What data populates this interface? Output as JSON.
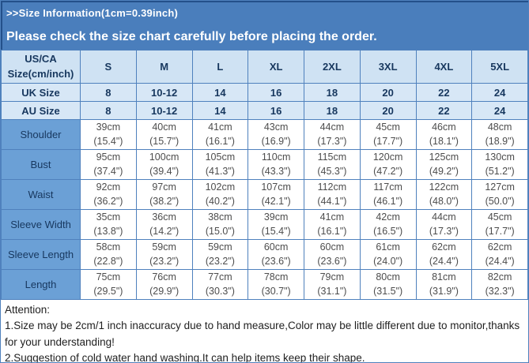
{
  "banner": {
    "title": ">>Size Information(1cm=0.39inch)",
    "subtitle": "Please check the size chart carefully before placing the order."
  },
  "table": {
    "corner_header_lines": [
      "US/CA",
      "Size(cm/inch)"
    ],
    "size_headers": [
      "S",
      "M",
      "L",
      "XL",
      "2XL",
      "3XL",
      "4XL",
      "5XL"
    ],
    "size_rows": [
      {
        "label": "UK Size",
        "values": [
          "8",
          "10-12",
          "14",
          "16",
          "18",
          "20",
          "22",
          "24"
        ]
      },
      {
        "label": "AU Size",
        "values": [
          "8",
          "10-12",
          "14",
          "16",
          "18",
          "20",
          "22",
          "24"
        ]
      }
    ],
    "measure_rows": [
      {
        "label": "Shoulder",
        "cm": [
          "39cm",
          "40cm",
          "41cm",
          "43cm",
          "44cm",
          "45cm",
          "46cm",
          "48cm"
        ],
        "inch": [
          "(15.4\")",
          "(15.7\")",
          "(16.1\")",
          "(16.9\")",
          "(17.3\")",
          "(17.7\")",
          "(18.1\")",
          "(18.9\")"
        ]
      },
      {
        "label": "Bust",
        "cm": [
          "95cm",
          "100cm",
          "105cm",
          "110cm",
          "115cm",
          "120cm",
          "125cm",
          "130cm"
        ],
        "inch": [
          "(37.4\")",
          "(39.4\")",
          "(41.3\")",
          "(43.3\")",
          "(45.3\")",
          "(47.2\")",
          "(49.2\")",
          "(51.2\")"
        ]
      },
      {
        "label": "Waist",
        "cm": [
          "92cm",
          "97cm",
          "102cm",
          "107cm",
          "112cm",
          "117cm",
          "122cm",
          "127cm"
        ],
        "inch": [
          "(36.2\")",
          "(38.2\")",
          "(40.2\")",
          "(42.1\")",
          "(44.1\")",
          "(46.1\")",
          "(48.0\")",
          "(50.0\")"
        ]
      },
      {
        "label": "Sleeve Width",
        "cm": [
          "35cm",
          "36cm",
          "38cm",
          "39cm",
          "41cm",
          "42cm",
          "44cm",
          "45cm"
        ],
        "inch": [
          "(13.8\")",
          "(14.2\")",
          "(15.0\")",
          "(15.4\")",
          "(16.1\")",
          "(16.5\")",
          "(17.3\")",
          "(17.7\")"
        ]
      },
      {
        "label": "Sleeve Length",
        "cm": [
          "58cm",
          "59cm",
          "59cm",
          "60cm",
          "60cm",
          "61cm",
          "62cm",
          "62cm"
        ],
        "inch": [
          "(22.8\")",
          "(23.2\")",
          "(23.2\")",
          "(23.6\")",
          "(23.6\")",
          "(24.0\")",
          "(24.4\")",
          "(24.4\")"
        ]
      },
      {
        "label": "Length",
        "cm": [
          "75cm",
          "76cm",
          "77cm",
          "78cm",
          "79cm",
          "80cm",
          "81cm",
          "82cm"
        ],
        "inch": [
          "(29.5\")",
          "(29.9\")",
          "(30.3\")",
          "(30.7\")",
          "(31.1\")",
          "(31.5\")",
          "(31.9\")",
          "(32.3\")"
        ]
      }
    ]
  },
  "footer": {
    "lines": [
      "Attention:",
      "1.Size may be 2cm/1 inch inaccuracy due to hand measure,Color may be little different due to monitor,thanks for your understanding!",
      "2.Suggestion of cold water hand washing.It can help items keep their shape."
    ]
  },
  "colors": {
    "banner_blue": "#4a7ebc",
    "banner_edge": "#24508a",
    "header_light_blue": "#cfe2f3",
    "size_row_light_blue": "#d7e7f6",
    "label_column_blue": "#6ba0d6",
    "grid_border": "#4f81bd",
    "navy_text": "#17375e",
    "value_text": "#4d4d4d"
  }
}
